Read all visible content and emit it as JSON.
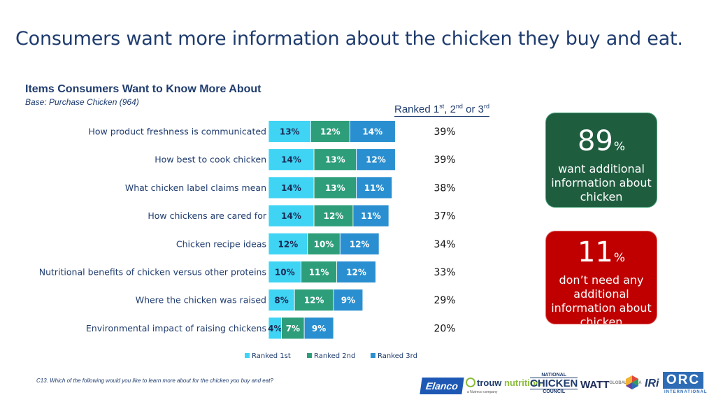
{
  "page": {
    "title": "Consumers want more information about the chicken they buy and eat.",
    "footnote": "C13.  Which of the following would you like to learn more about for the chicken you buy and eat?"
  },
  "chart_data": {
    "type": "bar",
    "orientation": "horizontal",
    "stacked": true,
    "title": "Items Consumers Want to Know More About",
    "subtitle": "Base: Purchase Chicken (964)",
    "categories": [
      "How product freshness is communicated",
      "How best to cook chicken",
      "What chicken label claims mean",
      "How chickens are cared for",
      "Chicken recipe ideas",
      "Nutritional benefits of chicken versus other proteins",
      "Where the chicken was raised",
      "Environmental impact of raising chickens"
    ],
    "series": [
      {
        "name": "Ranked 1st",
        "color": "#3fd4f4",
        "values": [
          13,
          14,
          14,
          14,
          12,
          10,
          8,
          4
        ]
      },
      {
        "name": "Ranked 2nd",
        "color": "#2e9e7a",
        "values": [
          12,
          13,
          13,
          12,
          10,
          11,
          12,
          7
        ]
      },
      {
        "name": "Ranked 3rd",
        "color": "#2a8fd0",
        "values": [
          14,
          12,
          11,
          11,
          12,
          12,
          9,
          9
        ]
      }
    ],
    "totals_header": {
      "prefix": "Ranked 1",
      "sup1": "st",
      "sep1": ",",
      "mid": "2",
      "sup2": "nd",
      "word": "or 3",
      "sup3": "rd"
    },
    "totals": [
      "39%",
      "39%",
      "38%",
      "37%",
      "34%",
      "33%",
      "29%",
      "20%"
    ],
    "legend_position": "bottom",
    "grid": false
  },
  "callouts": {
    "positive": {
      "value": "89",
      "unit": "%",
      "text": "want additional information about chicken",
      "color": "#1f5d3f"
    },
    "negative": {
      "value": "11",
      "unit": "%",
      "text": "don’t need any additional information about chicken",
      "color": "#c00000"
    }
  },
  "logos": {
    "elanco": "Elanco",
    "trouw_a": "trouw",
    "trouw_b": "nutrition",
    "trouw_sub": "a Nutreco company",
    "ncc_1": "NATIONAL",
    "ncc_2": "CHICKEN",
    "ncc_3": "COUNCIL",
    "watt": "WATT",
    "watt_sub": "GLOBAL MEDIA",
    "iri": "IRi",
    "orc": "ORC",
    "orc_sub": "INTERNATIONAL"
  }
}
